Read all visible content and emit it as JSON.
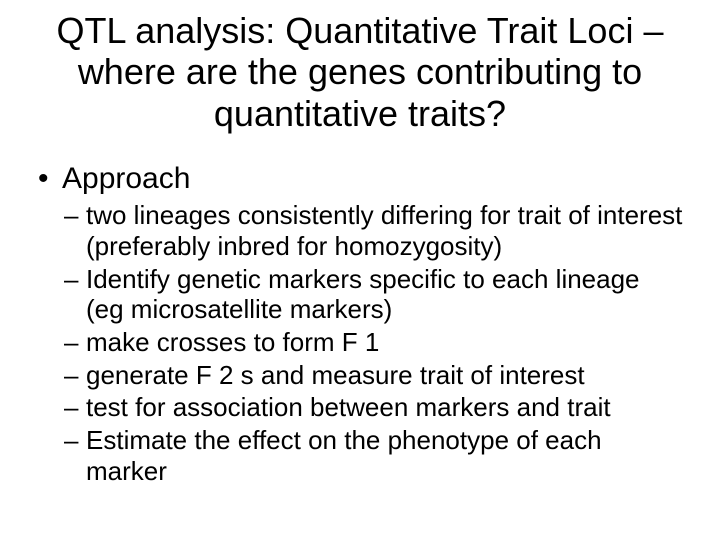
{
  "title": {
    "text": "QTL analysis:  Quantitative Trait Loci – where are the genes contributing to quantitative traits?",
    "fontsize": 36,
    "color": "#000000",
    "weight": 400
  },
  "level1": {
    "fontsize": 30,
    "items": [
      {
        "label": "Approach",
        "sub": {
          "fontsize": 26,
          "items": [
            "two lineages consistently differing for trait of interest (preferably inbred for homozygosity)",
            "Identify genetic markers specific to each lineage (eg microsatellite markers)",
            "make crosses to form F 1",
            "generate F 2 s and measure trait of interest",
            "test for association between markers and trait",
            "Estimate the effect on the phenotype of each marker"
          ]
        }
      }
    ]
  },
  "background_color": "#ffffff"
}
